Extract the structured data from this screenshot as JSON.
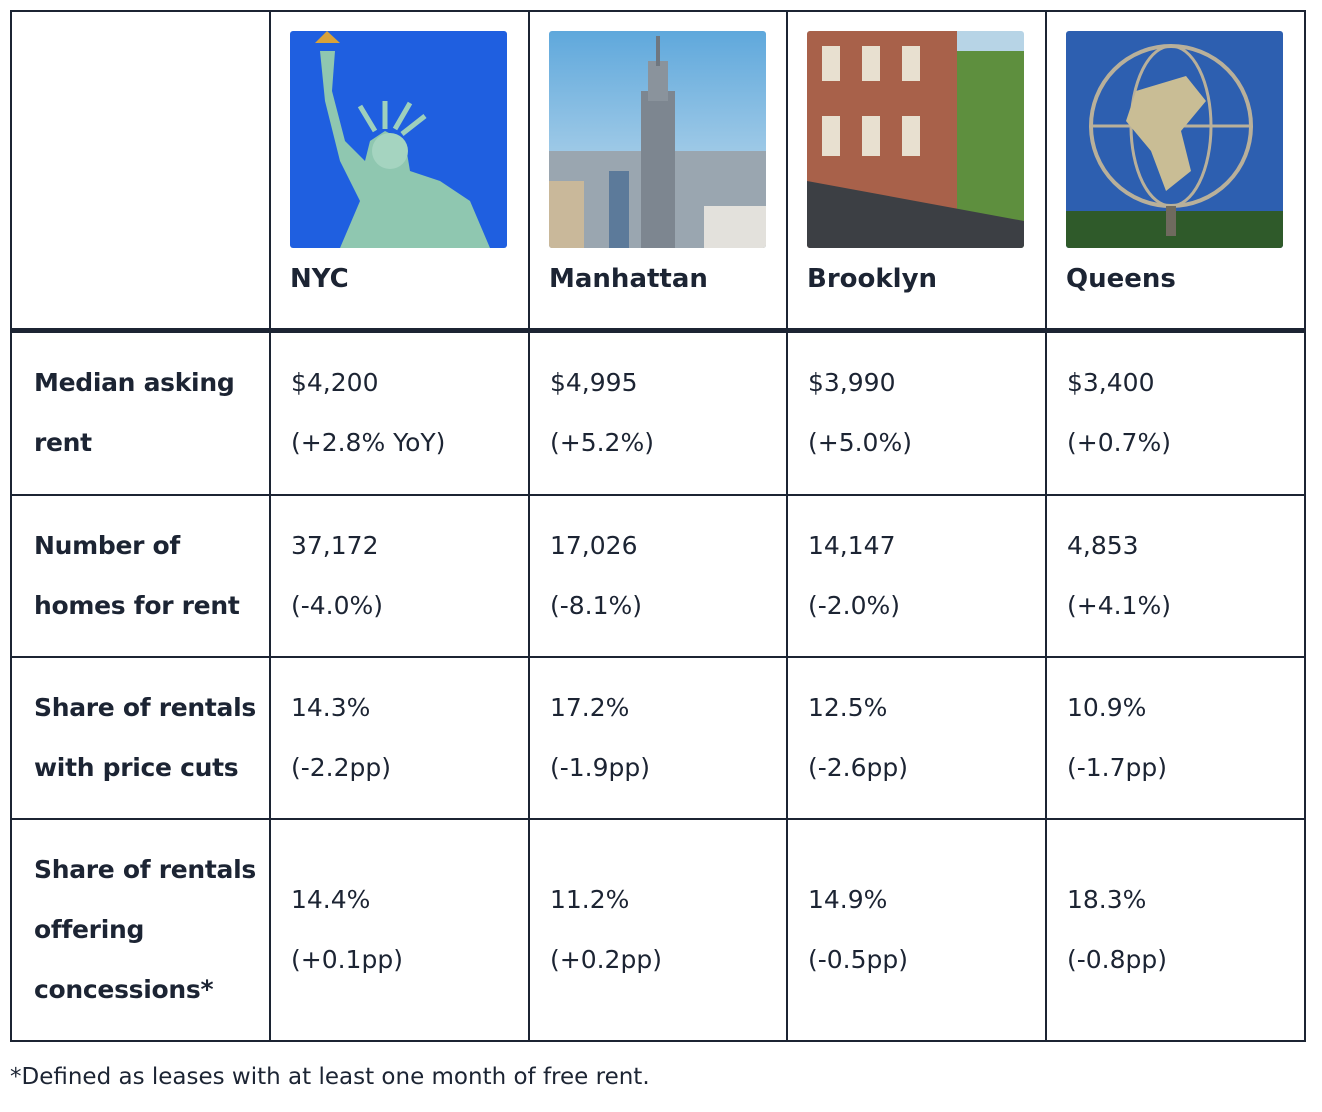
{
  "table": {
    "header": [
      "NYC",
      "Manhattan",
      "Brooklyn",
      "Queens"
    ],
    "rows": [
      {
        "label": "Median asking rent",
        "cells": [
          [
            "$4,200",
            "(+2.8% YoY)"
          ],
          [
            "$4,995",
            "(+5.2%)"
          ],
          [
            "$3,990",
            "(+5.0%)"
          ],
          [
            "$3,400",
            "(+0.7%)"
          ]
        ]
      },
      {
        "label": "Number of homes for rent",
        "cells": [
          [
            "37,172",
            "(-4.0%)"
          ],
          [
            "17,026",
            "(-8.1%)"
          ],
          [
            "14,147",
            "(-2.0%)"
          ],
          [
            "4,853",
            "(+4.1%)"
          ]
        ]
      },
      {
        "label": "Share of rentals with price cuts",
        "cells": [
          [
            "14.3%",
            "(-2.2pp)"
          ],
          [
            "17.2%",
            "(-1.9pp)"
          ],
          [
            "12.5%",
            "(-2.6pp)"
          ],
          [
            "10.9%",
            "(-1.7pp)"
          ]
        ]
      },
      {
        "label": "Share of rentals offering concessions*",
        "cells": [
          [
            "14.4%",
            "(+0.1pp)"
          ],
          [
            "11.2%",
            "(+0.2pp)"
          ],
          [
            "14.9%",
            "(-0.5pp)"
          ],
          [
            "18.3%",
            "(-0.8pp)"
          ]
        ]
      }
    ]
  },
  "footnote": "*Defined as leases with at least one month of free rent."
}
